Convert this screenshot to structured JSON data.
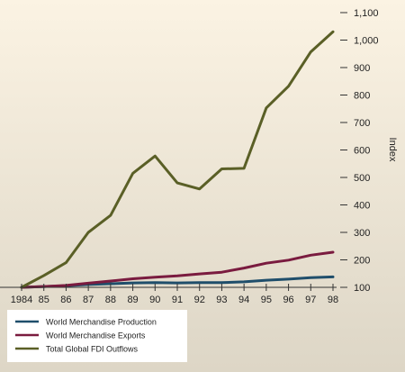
{
  "colors": {
    "background_top": "#fbf3e3",
    "background_bottom": "#ddd6c6",
    "legend_background": "#ffffff",
    "axis": "#333333",
    "production": "#1f4e6b",
    "exports": "#7a1b3f",
    "fdi": "#5a5f26"
  },
  "chart_data": {
    "type": "line",
    "title": "",
    "xlabel": "",
    "ylabel": "Index",
    "y_axis_side": "right",
    "ylim": [
      100,
      1100
    ],
    "yticks": [
      "100",
      "200",
      "300",
      "400",
      "500",
      "600",
      "700",
      "800",
      "900",
      "1,000",
      "1,100"
    ],
    "categories": [
      "1984",
      "85",
      "86",
      "87",
      "88",
      "89",
      "90",
      "91",
      "92",
      "93",
      "94",
      "95",
      "96",
      "97",
      "98"
    ],
    "grid": false,
    "legend_position": "bottom-left",
    "series": [
      {
        "name": "World Merchandise Production",
        "color_key": "production",
        "values": [
          100,
          103,
          106,
          110,
          113,
          116,
          117,
          116,
          117,
          117,
          120,
          126,
          130,
          135,
          138
        ]
      },
      {
        "name": "World Merchandise Exports",
        "color_key": "exports",
        "values": [
          100,
          103,
          107,
          115,
          123,
          131,
          137,
          142,
          149,
          155,
          170,
          188,
          199,
          217,
          228
        ]
      },
      {
        "name": "Total Global FDI Outflows",
        "color_key": "fdi",
        "values": [
          100,
          143,
          190,
          300,
          362,
          515,
          578,
          480,
          458,
          531,
          533,
          753,
          832,
          957,
          1030
        ]
      }
    ]
  }
}
